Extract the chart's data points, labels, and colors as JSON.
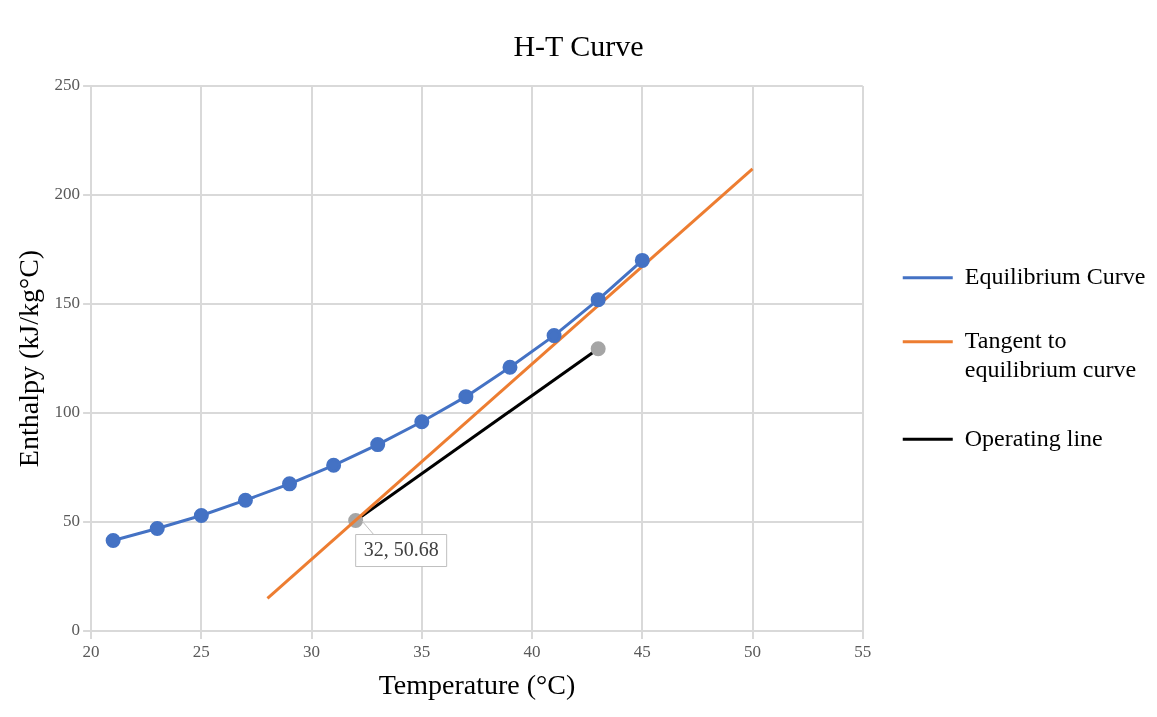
{
  "chart_data": {
    "type": "line",
    "title": "H-T Curve",
    "xlabel": "Temperature (°C)",
    "ylabel": "Enthalpy (kJ/kg°C)",
    "xlim": [
      20,
      55
    ],
    "xticks": [
      20,
      25,
      30,
      35,
      40,
      45,
      50,
      55
    ],
    "ylim": [
      0,
      250
    ],
    "yticks": [
      0,
      50,
      100,
      150,
      200,
      250
    ],
    "grid": true,
    "legend": "right",
    "series": [
      {
        "name": "Equilibrium Curve",
        "color": "#4472c4",
        "marker": "circle",
        "x": [
          21,
          23,
          25,
          27,
          29,
          31,
          33,
          35,
          37,
          39,
          41,
          43,
          45
        ],
        "values": [
          41.5,
          47,
          53,
          60,
          67.5,
          76,
          85.5,
          96,
          107.5,
          121,
          135.5,
          152,
          170
        ]
      },
      {
        "name": "Tangent to equilibrium curve",
        "color": "#ed7d31",
        "marker": "none",
        "x": [
          28,
          50
        ],
        "values": [
          15,
          212
        ]
      },
      {
        "name": "Operating line",
        "color": "#000000",
        "marker": "circle",
        "x": [
          32,
          43
        ],
        "values": [
          50.68,
          129.5
        ]
      }
    ],
    "annotations": [
      {
        "text": "32, 50.68",
        "x": 32,
        "y": 50.68
      }
    ]
  }
}
